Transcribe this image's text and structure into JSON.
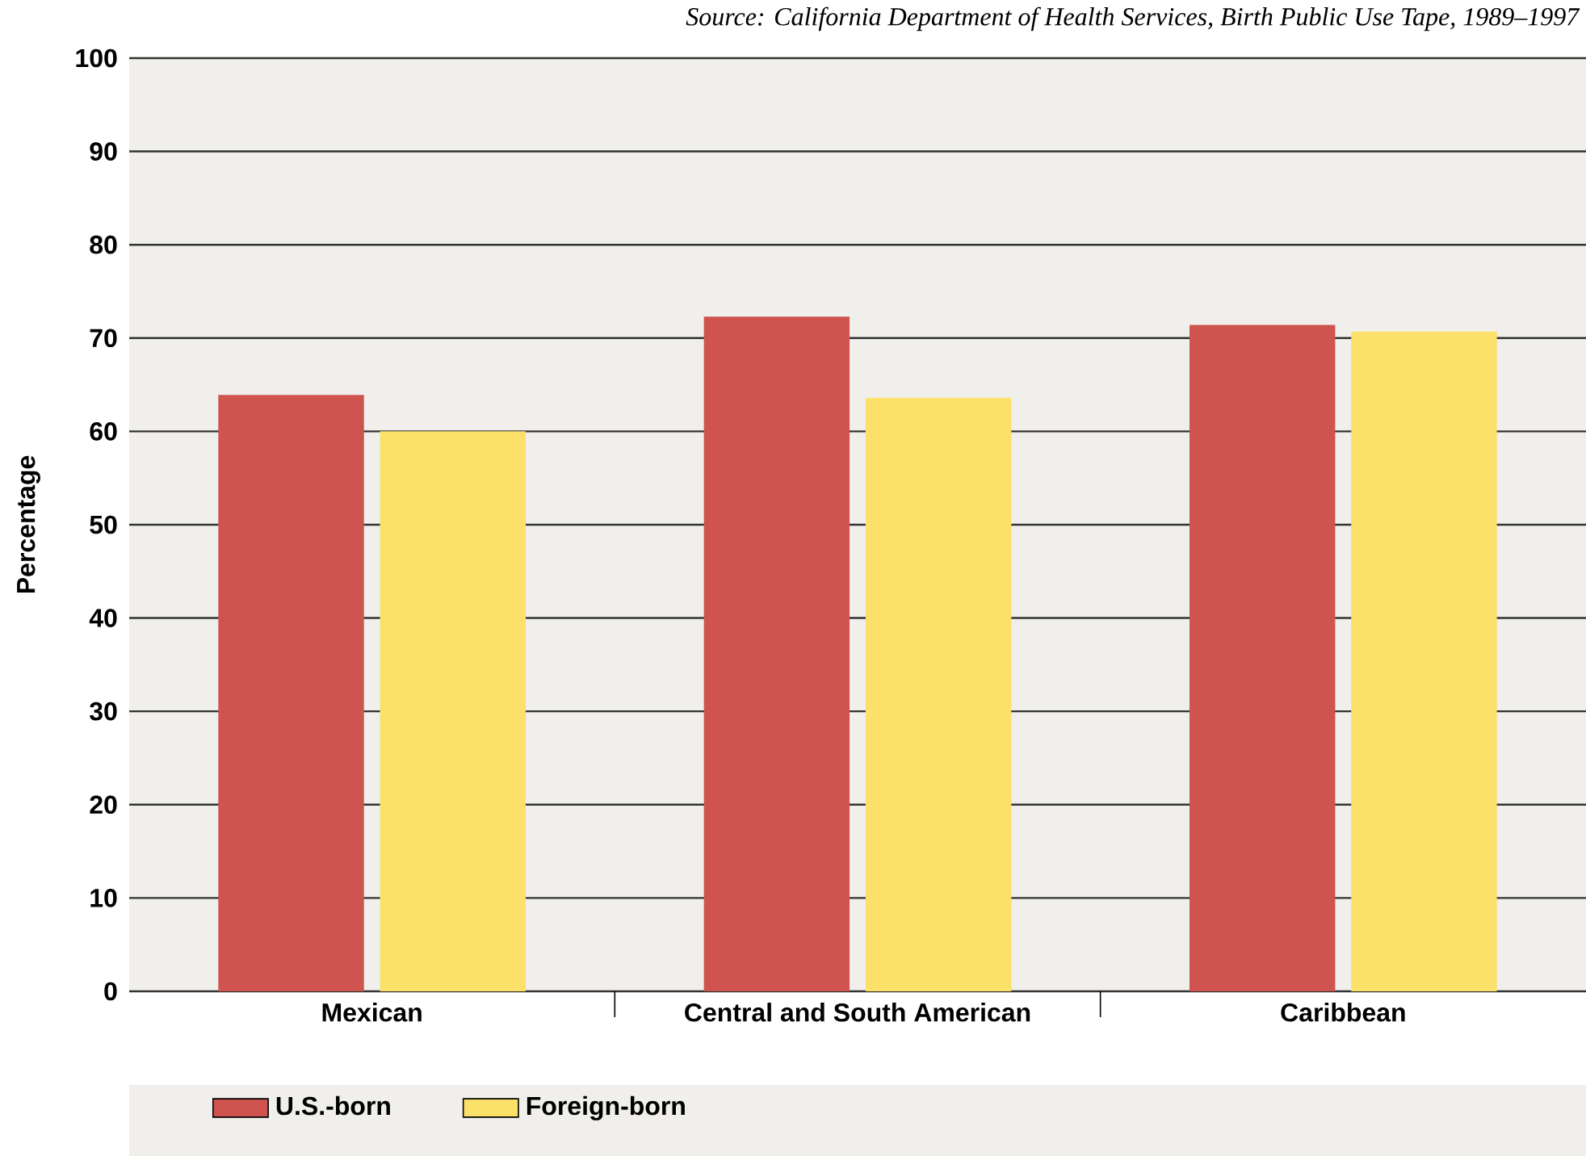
{
  "chart_data": {
    "type": "bar",
    "categories": [
      "Mexican",
      "Central and South American",
      "Caribbean"
    ],
    "series": [
      {
        "name": "U.S.-born",
        "color": "#cf5450",
        "values": [
          63.9,
          72.3,
          71.4
        ]
      },
      {
        "name": "Foreign-born",
        "color": "#fbe06a",
        "values": [
          60.0,
          63.6,
          70.7
        ]
      }
    ],
    "ylabel": "Percentage",
    "annotations": [
      "Source: California Department of Health Services, Birth Public Use Tape, 1989–1997"
    ],
    "ylim": [
      0,
      100
    ],
    "yticks": [
      0,
      10,
      20,
      30,
      40,
      50,
      60,
      70,
      80,
      90,
      100
    ],
    "grid": "y",
    "legend": "bottom"
  }
}
